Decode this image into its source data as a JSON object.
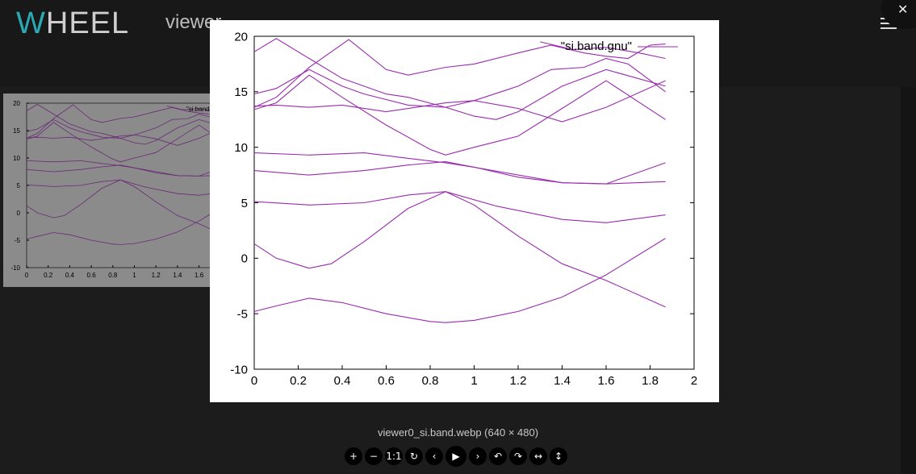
{
  "header": {
    "logo_first": "W",
    "logo_rest": "HEEL",
    "app_title": "viewer"
  },
  "viewer": {
    "caption": "viewer0_si.band.webp (640 × 480)",
    "toolbar": [
      {
        "name": "zoom-in-button",
        "glyph": "+"
      },
      {
        "name": "zoom-out-button",
        "glyph": "−"
      },
      {
        "name": "one-to-one-button",
        "glyph": "1:1"
      },
      {
        "name": "reset-button",
        "glyph": "↻"
      },
      {
        "name": "prev-button",
        "glyph": "‹"
      },
      {
        "name": "play-button",
        "glyph": "▶"
      },
      {
        "name": "next-button",
        "glyph": "›"
      },
      {
        "name": "rotate-left-button",
        "glyph": "↶"
      },
      {
        "name": "rotate-right-button",
        "glyph": "↷"
      },
      {
        "name": "flip-horizontal-button",
        "glyph": "↔"
      },
      {
        "name": "flip-vertical-button",
        "glyph": "↕"
      }
    ]
  },
  "chart_data": {
    "type": "line",
    "legend": "\"si.band.gnu\"",
    "legend_position": "top-right",
    "xlim": [
      0,
      2
    ],
    "ylim": [
      -10,
      20
    ],
    "xticks": [
      "0",
      "0.2",
      "0.4",
      "0.6",
      "0.8",
      "1",
      "1.2",
      "1.4",
      "1.6",
      "1.8",
      "2"
    ],
    "yticks": [
      "-10",
      "-5",
      "0",
      "5",
      "10",
      "15",
      "20"
    ],
    "line_color": "#9a2bb0",
    "series": [
      {
        "x": [
          0,
          0.1,
          0.25,
          0.4,
          0.6,
          0.8,
          0.87,
          1.0,
          1.2,
          1.4,
          1.6,
          1.87
        ],
        "y": [
          -4.8,
          -4.3,
          -3.6,
          -4.0,
          -5.0,
          -5.7,
          -5.8,
          -5.6,
          -4.8,
          -3.5,
          -1.5,
          1.8
        ]
      },
      {
        "x": [
          0,
          0.1,
          0.25,
          0.35,
          0.5,
          0.7,
          0.87,
          1.0,
          1.2,
          1.4,
          1.6,
          1.87
        ],
        "y": [
          1.3,
          0.0,
          -0.9,
          -0.5,
          1.5,
          4.5,
          6.0,
          4.8,
          2.0,
          -0.5,
          -2.0,
          -4.4
        ]
      },
      {
        "x": [
          0,
          0.25,
          0.5,
          0.7,
          0.87,
          1.1,
          1.4,
          1.6,
          1.87
        ],
        "y": [
          5.1,
          4.8,
          5.0,
          5.7,
          6.0,
          4.7,
          3.5,
          3.2,
          3.9
        ]
      },
      {
        "x": [
          0,
          0.25,
          0.5,
          0.7,
          0.87,
          1.0,
          1.2,
          1.4,
          1.6,
          1.87
        ],
        "y": [
          7.9,
          7.5,
          7.9,
          8.4,
          8.7,
          8.2,
          7.3,
          6.8,
          6.7,
          8.6
        ]
      },
      {
        "x": [
          0,
          0.25,
          0.5,
          0.7,
          0.87,
          1.0,
          1.2,
          1.4,
          1.6,
          1.87
        ],
        "y": [
          9.5,
          9.3,
          9.5,
          9.0,
          8.6,
          8.2,
          7.5,
          6.8,
          6.7,
          6.9
        ]
      },
      {
        "x": [
          0,
          0.1,
          0.25,
          0.4,
          0.6,
          0.8,
          0.87,
          1.0,
          1.1,
          1.2,
          1.4,
          1.6,
          1.87
        ],
        "y": [
          13.4,
          14.0,
          16.5,
          14.5,
          12.0,
          9.8,
          9.3,
          10.0,
          10.5,
          11.0,
          13.5,
          16.0,
          12.5
        ]
      },
      {
        "x": [
          0,
          0.1,
          0.25,
          0.4,
          0.6,
          0.8,
          0.87,
          1.0,
          1.2,
          1.4,
          1.6,
          1.87
        ],
        "y": [
          13.7,
          13.8,
          13.6,
          13.8,
          13.2,
          13.8,
          14.0,
          14.2,
          13.5,
          12.3,
          13.6,
          16.0
        ]
      },
      {
        "x": [
          0,
          0.1,
          0.25,
          0.4,
          0.5,
          0.7,
          0.87,
          1.0,
          1.1,
          1.2,
          1.4,
          1.6,
          1.87
        ],
        "y": [
          14.8,
          15.3,
          17.0,
          15.5,
          14.8,
          13.8,
          13.6,
          12.8,
          12.5,
          13.2,
          15.5,
          17.0,
          15.5
        ]
      },
      {
        "x": [
          0,
          0.1,
          0.25,
          0.4,
          0.6,
          0.7,
          0.87,
          1.0,
          1.2,
          1.35,
          1.5,
          1.6,
          1.7,
          1.87
        ],
        "y": [
          18.6,
          19.8,
          18.0,
          16.2,
          14.8,
          14.5,
          13.6,
          14.2,
          15.5,
          17.0,
          17.2,
          18.0,
          17.5,
          15.0
        ]
      },
      {
        "x": [
          0,
          0.1,
          0.25,
          0.43,
          0.6,
          0.7,
          0.87,
          1.0,
          1.2,
          1.35,
          1.5,
          1.6,
          1.7,
          1.8,
          1.87
        ],
        "y": [
          13.6,
          14.5,
          17.2,
          19.7,
          17.0,
          16.5,
          17.2,
          17.5,
          18.5,
          19.2,
          18.5,
          18.2,
          18.0,
          19.2,
          19.3
        ]
      },
      {
        "x": [
          1.3,
          1.45,
          1.6,
          1.75,
          1.87
        ],
        "y": [
          19.5,
          18.8,
          19.0,
          18.5,
          18.0
        ]
      }
    ]
  }
}
